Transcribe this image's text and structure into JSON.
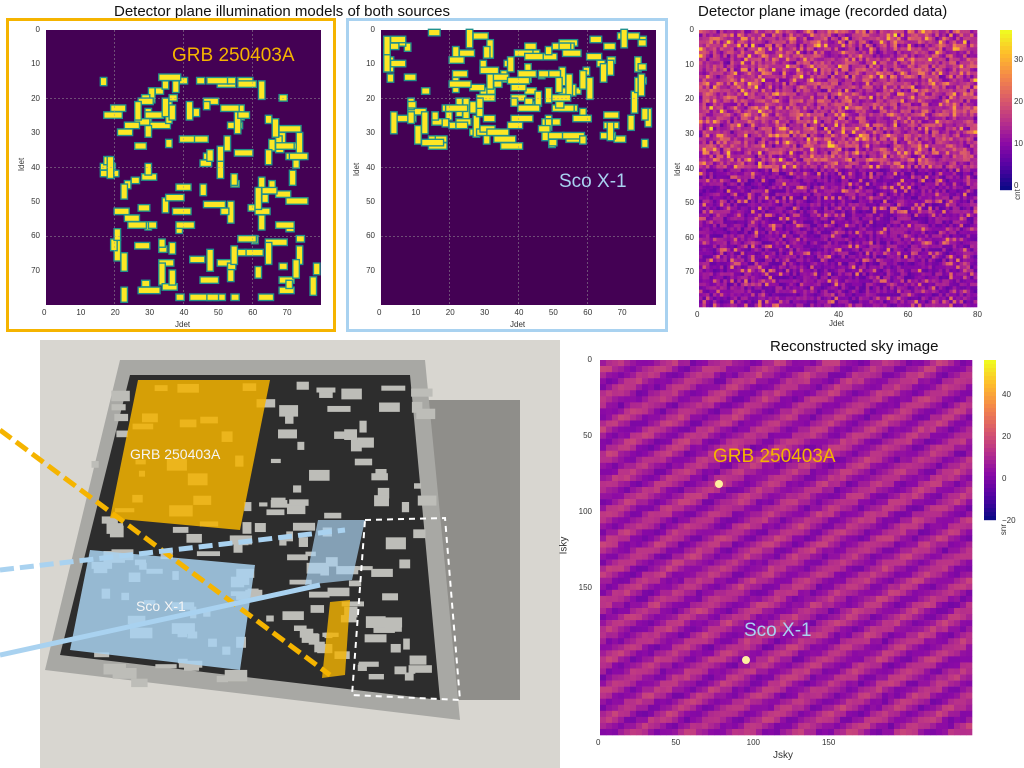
{
  "titles": {
    "illumination": "Detector plane illumination models of both sources",
    "detector": "Detector plane image (recorded data)",
    "reconstructed": "Reconstructed sky image"
  },
  "sources": {
    "grb": "GRB 250403A",
    "sco": "Sco X-1"
  },
  "panel_grb": {
    "xlabel": "Jdet",
    "ylabel": "Idet",
    "xticks": [
      "0",
      "10",
      "20",
      "30",
      "40",
      "50",
      "60",
      "70"
    ],
    "yticks": [
      "0",
      "10",
      "20",
      "30",
      "40",
      "50",
      "60",
      "70"
    ]
  },
  "panel_sco": {
    "xlabel": "Jdet",
    "ylabel": "Idet",
    "xticks": [
      "0",
      "10",
      "20",
      "30",
      "40",
      "50",
      "60",
      "70"
    ],
    "yticks": [
      "0",
      "10",
      "20",
      "30",
      "40",
      "50",
      "60",
      "70"
    ]
  },
  "panel_det": {
    "xlabel": "Jdet",
    "ylabel": "Idet",
    "xticks": [
      "0",
      "20",
      "40",
      "60",
      "80"
    ],
    "yticks": [
      "0",
      "10",
      "20",
      "30",
      "40",
      "50",
      "60",
      "70"
    ],
    "colorbar_label": "cnt",
    "colorbar_ticks": [
      "30",
      "20",
      "10",
      "0"
    ]
  },
  "panel_sky": {
    "xlabel": "Jsky",
    "ylabel": "Isky",
    "xticks": [
      "0",
      "50",
      "100",
      "150"
    ],
    "yticks": [
      "0",
      "50",
      "100",
      "150"
    ],
    "colorbar_label": "snr",
    "colorbar_ticks": [
      "40",
      "20",
      "0",
      "−20"
    ]
  },
  "photo": {
    "label_grb": "GRB 250403A",
    "label_sco": "Sco X-1"
  },
  "colors": {
    "grb": "#f5b400",
    "sco": "#a9d2f0",
    "mask_off": "#440154",
    "mask_on": "#fde725",
    "mask_edge": "#21918c"
  }
}
